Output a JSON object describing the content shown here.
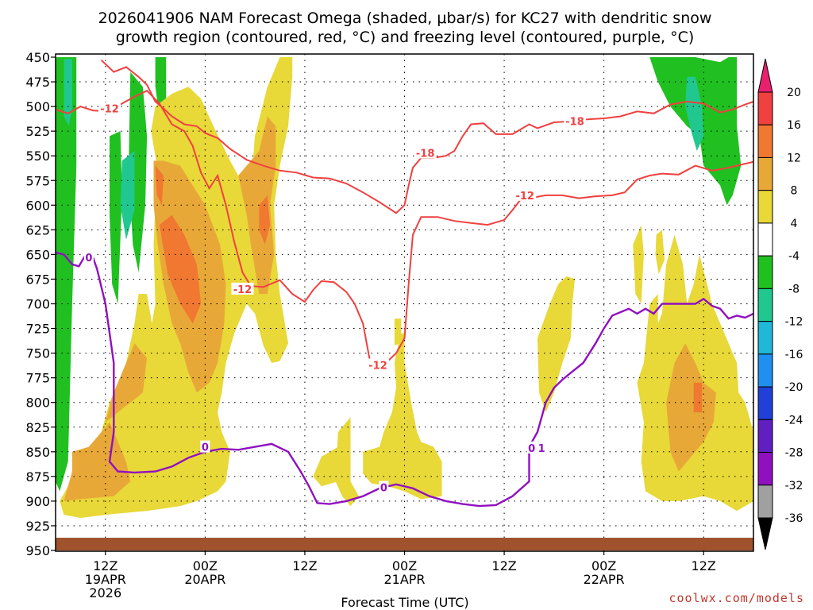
{
  "chart_data": {
    "type": "heatmap",
    "title_line1": "2026041906 NAM Forecast Omega (shaded, μbar/s) for KC27 with dendritic snow",
    "title_line2": "growth region (contoured, red, °C) and freezing level (contoured, purple, °C)",
    "xlabel": "Forecast Time (UTC)",
    "credit": "coolwx.com/models",
    "y_ticks": [
      450,
      475,
      500,
      525,
      550,
      575,
      600,
      625,
      650,
      675,
      700,
      725,
      750,
      775,
      800,
      825,
      850,
      875,
      900,
      925,
      950
    ],
    "ylim": [
      450,
      950
    ],
    "x_ticks": [
      {
        "hour": 6,
        "lines": [
          "12Z",
          "19APR",
          "2026"
        ]
      },
      {
        "hour": 18,
        "lines": [
          "00Z",
          "20APR"
        ]
      },
      {
        "hour": 30,
        "lines": [
          "12Z"
        ]
      },
      {
        "hour": 42,
        "lines": [
          "00Z",
          "21APR"
        ]
      },
      {
        "hour": 54,
        "lines": [
          "12Z"
        ]
      },
      {
        "hour": 66,
        "lines": [
          "00Z",
          "22APR"
        ]
      },
      {
        "hour": 78,
        "lines": [
          "12Z"
        ]
      }
    ],
    "xlim": [
      0,
      84
    ],
    "colorbar": {
      "labels": [
        "20",
        "16",
        "12",
        "8",
        "4",
        "-4",
        "-8",
        "-12",
        "-16",
        "-20",
        "-24",
        "-28",
        "-32",
        "-36"
      ],
      "colors": [
        "#e8206e",
        "#f04040",
        "#f07830",
        "#e8a838",
        "#e8d838",
        "#ffffff",
        "#20c020",
        "#20c890",
        "#20b8d8",
        "#2090f0",
        "#2040d8",
        "#6020c0",
        "#9010c0",
        "#a0a0a0",
        "#000000"
      ]
    },
    "omega_colors": {
      "4": "#e8d838",
      "8": "#e8a838",
      "12": "#f07830",
      "-4": "#20c020",
      "-8": "#20c890"
    },
    "ground_color": "#a0522d",
    "dgz_color": "#f04040",
    "freezing_color": "#9010c0",
    "contour_labels": [
      {
        "text": "-12",
        "hour": 6.5,
        "p": 502,
        "kind": "dgz"
      },
      {
        "text": "-12",
        "hour": 22.5,
        "p": 685,
        "kind": "dgz"
      },
      {
        "text": "-12",
        "hour": 38.8,
        "p": 762,
        "kind": "dgz"
      },
      {
        "text": "-18",
        "hour": 44.5,
        "p": 547,
        "kind": "dgz"
      },
      {
        "text": "-12",
        "hour": 56.5,
        "p": 590,
        "kind": "dgz"
      },
      {
        "text": "-18",
        "hour": 62.5,
        "p": 515,
        "kind": "dgz"
      },
      {
        "text": "0",
        "hour": 4,
        "p": 653,
        "kind": "frz"
      },
      {
        "text": "0",
        "hour": 18,
        "p": 845,
        "kind": "frz"
      },
      {
        "text": "0",
        "hour": 39.5,
        "p": 886,
        "kind": "frz"
      },
      {
        "text": "0",
        "hour": 57.3,
        "p": 846,
        "kind": "frz"
      },
      {
        "text": "1",
        "hour": 58.5,
        "p": 846,
        "kind": "frz"
      }
    ],
    "dgz_lines": [
      [
        [
          0,
          503
        ],
        [
          1.5,
          507
        ],
        [
          3,
          500
        ],
        [
          4.5,
          504
        ],
        [
          6.5,
          505
        ],
        [
          8,
          497
        ],
        [
          9.5,
          490
        ],
        [
          11,
          484
        ],
        [
          12.5,
          497
        ],
        [
          14,
          518
        ],
        [
          15.5,
          525
        ],
        [
          16.5,
          540
        ],
        [
          17.5,
          567
        ],
        [
          18.5,
          583
        ],
        [
          19.5,
          570
        ],
        [
          20.5,
          600
        ],
        [
          21.5,
          637
        ],
        [
          22.5,
          668
        ],
        [
          23.5,
          682
        ],
        [
          25,
          683
        ],
        [
          27,
          676
        ],
        [
          28.5,
          690
        ],
        [
          30,
          698
        ],
        [
          31,
          686
        ],
        [
          32,
          677
        ],
        [
          33.5,
          678
        ],
        [
          35,
          688
        ],
        [
          36,
          700
        ],
        [
          37,
          720
        ],
        [
          38,
          765
        ],
        [
          39.5,
          762
        ],
        [
          41,
          750
        ],
        [
          42,
          735
        ],
        [
          42.5,
          680
        ],
        [
          43,
          630
        ],
        [
          44,
          612
        ],
        [
          46,
          612
        ],
        [
          48,
          616
        ],
        [
          50,
          618
        ],
        [
          52,
          620
        ],
        [
          54,
          615
        ],
        [
          55,
          605
        ],
        [
          56,
          594
        ],
        [
          57,
          593
        ],
        [
          59,
          590
        ],
        [
          61,
          590
        ],
        [
          63,
          593
        ],
        [
          65,
          591
        ],
        [
          67,
          590
        ],
        [
          68.5,
          587
        ],
        [
          70,
          574
        ],
        [
          71.5,
          570
        ],
        [
          73,
          568
        ],
        [
          75,
          569
        ],
        [
          77,
          560
        ],
        [
          79,
          565
        ],
        [
          81,
          562
        ],
        [
          83,
          558
        ],
        [
          84,
          556
        ]
      ],
      [
        [
          5.5,
          453
        ],
        [
          7,
          465
        ],
        [
          8.5,
          460
        ],
        [
          10,
          470
        ],
        [
          11,
          478
        ],
        [
          12,
          495
        ],
        [
          13,
          502
        ],
        [
          14,
          510
        ],
        [
          15.5,
          518
        ],
        [
          17,
          520
        ],
        [
          18,
          527
        ],
        [
          19.5,
          532
        ],
        [
          21,
          543
        ],
        [
          23,
          554
        ],
        [
          25,
          560
        ],
        [
          27,
          565
        ],
        [
          29,
          567
        ],
        [
          31,
          572
        ],
        [
          33,
          573
        ],
        [
          35,
          578
        ],
        [
          37,
          587
        ],
        [
          39,
          597
        ],
        [
          41,
          608
        ],
        [
          42,
          600
        ],
        [
          42.5,
          580
        ],
        [
          43,
          562
        ],
        [
          44,
          552
        ],
        [
          45.5,
          552
        ],
        [
          47,
          550
        ],
        [
          48,
          545
        ],
        [
          49,
          530
        ],
        [
          50,
          518
        ],
        [
          51.5,
          517
        ],
        [
          53,
          528
        ],
        [
          55,
          528
        ],
        [
          57,
          518
        ],
        [
          58,
          522
        ],
        [
          60,
          516
        ],
        [
          62,
          515
        ],
        [
          64,
          513
        ],
        [
          66,
          512
        ],
        [
          68,
          510
        ],
        [
          70,
          505
        ],
        [
          72,
          507
        ],
        [
          74,
          498
        ],
        [
          76,
          495
        ],
        [
          78,
          497
        ],
        [
          80,
          506
        ],
        [
          81.5,
          503
        ],
        [
          83,
          498
        ],
        [
          84,
          495
        ]
      ]
    ],
    "freezing_lines": [
      [
        [
          0,
          648
        ],
        [
          1,
          650
        ],
        [
          2,
          660
        ],
        [
          2.8,
          662
        ],
        [
          3.5,
          652
        ],
        [
          4.5,
          653
        ],
        [
          5,
          665
        ],
        [
          6,
          700
        ],
        [
          7,
          760
        ],
        [
          7,
          830
        ],
        [
          6.5,
          860
        ],
        [
          7.5,
          870
        ],
        [
          9.5,
          871
        ],
        [
          12,
          870
        ],
        [
          14,
          865
        ],
        [
          16,
          856
        ],
        [
          18,
          850
        ],
        [
          20,
          847
        ],
        [
          22,
          848
        ],
        [
          24,
          845
        ],
        [
          26,
          842
        ],
        [
          28,
          850
        ],
        [
          29.5,
          870
        ],
        [
          30.5,
          885
        ],
        [
          31.5,
          902
        ],
        [
          33,
          903
        ],
        [
          35,
          900
        ],
        [
          37,
          895
        ],
        [
          39,
          887
        ],
        [
          41,
          883
        ],
        [
          43,
          887
        ],
        [
          45,
          895
        ],
        [
          47,
          900
        ],
        [
          49,
          903
        ],
        [
          51,
          905
        ],
        [
          53,
          904
        ],
        [
          55,
          895
        ],
        [
          57,
          880
        ],
        [
          57,
          845
        ],
        [
          58,
          830
        ],
        [
          58.5,
          815
        ],
        [
          59,
          800
        ],
        [
          60,
          785
        ],
        [
          61,
          777
        ],
        [
          62,
          770
        ],
        [
          63.5,
          760
        ],
        [
          65,
          740
        ],
        [
          66,
          725
        ],
        [
          67,
          712
        ],
        [
          69,
          705
        ],
        [
          70,
          710
        ],
        [
          71,
          705
        ],
        [
          72,
          710
        ],
        [
          73,
          700
        ],
        [
          75,
          700
        ],
        [
          77,
          700
        ],
        [
          78,
          695
        ],
        [
          79,
          702
        ],
        [
          80,
          705
        ],
        [
          81,
          715
        ],
        [
          82,
          712
        ],
        [
          83,
          714
        ],
        [
          84,
          710
        ]
      ]
    ]
  }
}
